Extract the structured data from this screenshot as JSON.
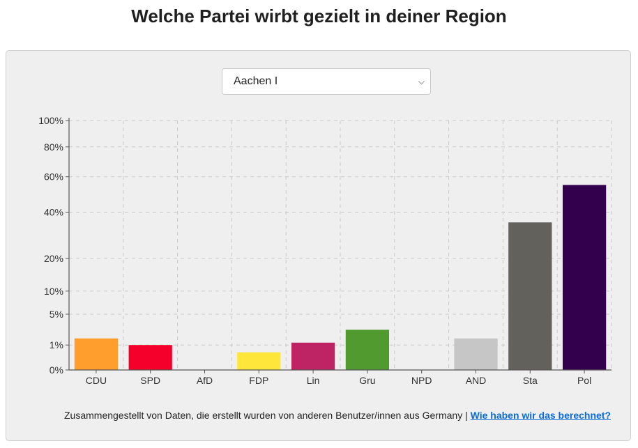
{
  "header": {
    "title": "Welche Partei wirbt gezielt in deiner Region"
  },
  "region_select": {
    "value": "Aachen I"
  },
  "footer": {
    "text": "Zusammengestellt von Daten, die erstellt wurden von anderen Benutzer/innen aus Germany |",
    "link": "Wie haben wir das berechnet?"
  },
  "chart_data": {
    "type": "bar",
    "categories": [
      "CDU",
      "SPD",
      "AfD",
      "FDP",
      "Lin",
      "Gru",
      "NPD",
      "AND",
      "Sta",
      "Pol"
    ],
    "values": [
      1.6,
      1.0,
      0,
      0.5,
      1.2,
      2.6,
      0,
      1.6,
      35,
      55
    ],
    "colors": [
      "#ff9e2c",
      "#f5002a",
      "#0f6bff",
      "#ffe63b",
      "#be2464",
      "#519a2f",
      "#7a4b2a",
      "#c6c6c6",
      "#62615b",
      "#33004d"
    ],
    "y_ticks": [
      0,
      1,
      5,
      10,
      20,
      40,
      60,
      80,
      100
    ],
    "y_tick_labels": [
      "0%",
      "1%",
      "5%",
      "10%",
      "20%",
      "40%",
      "60%",
      "80%",
      "100%"
    ],
    "y_scale": "sqrt",
    "ylim": [
      0,
      100
    ],
    "grid": true,
    "title": "",
    "xlabel": "",
    "ylabel": ""
  }
}
